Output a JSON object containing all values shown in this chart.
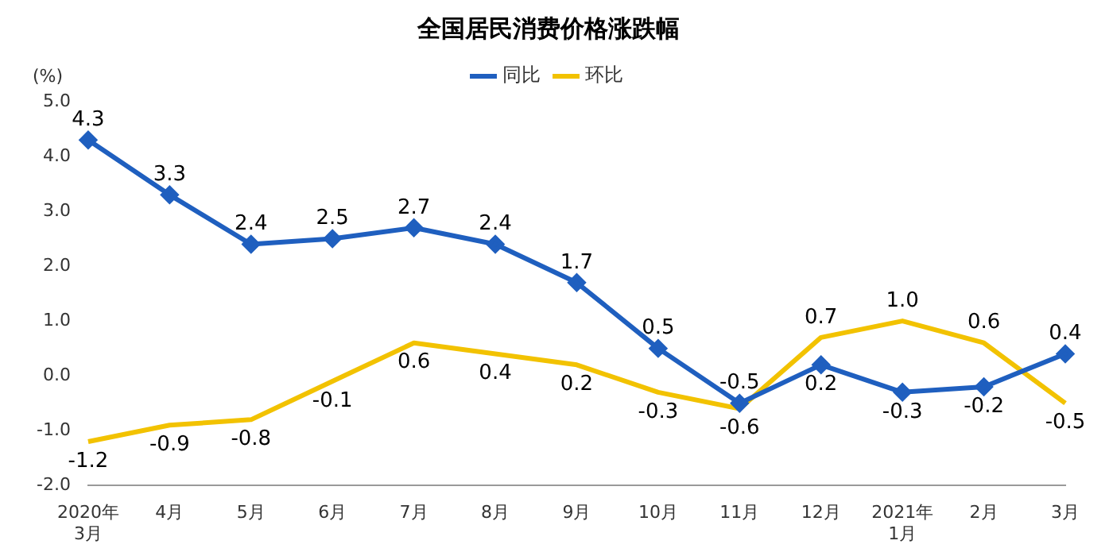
{
  "chart_data": {
    "type": "line",
    "title": "全国居民消费价格涨跌幅",
    "ylabel": "(%)",
    "categories": [
      "2020年\n3月",
      "4月",
      "5月",
      "6月",
      "7月",
      "8月",
      "9月",
      "10月",
      "11月",
      "12月",
      "2021年\n1月",
      "2月",
      "3月"
    ],
    "series": [
      {
        "name": "同比",
        "color": "#1f5fbf",
        "marker": "diamond",
        "values": [
          4.3,
          3.3,
          2.4,
          2.5,
          2.7,
          2.4,
          1.7,
          0.5,
          -0.5,
          0.2,
          -0.3,
          -0.2,
          0.4
        ],
        "value_labels": [
          "4.3",
          "3.3",
          "2.4",
          "2.5",
          "2.7",
          "2.4",
          "1.7",
          "0.5",
          "-0.5",
          "0.2",
          "-0.3",
          "-0.2",
          "0.4"
        ]
      },
      {
        "name": "环比",
        "color": "#f2c200",
        "marker": "none",
        "values": [
          -1.2,
          -0.9,
          -0.8,
          -0.1,
          0.6,
          0.4,
          0.2,
          -0.3,
          -0.6,
          0.7,
          1.0,
          0.6,
          -0.5
        ],
        "value_labels": [
          "-1.2",
          "-0.9",
          "-0.8",
          "-0.1",
          "0.6",
          "0.4",
          "0.2",
          "-0.3",
          "-0.6",
          "0.7",
          "1.0",
          "0.6",
          "-0.5"
        ]
      }
    ],
    "ylim": [
      -2,
      5
    ],
    "yticks": [
      {
        "value": -2,
        "label": "-2.0"
      },
      {
        "value": -1,
        "label": "-1.0"
      },
      {
        "value": 0,
        "label": "0.0"
      },
      {
        "value": 1,
        "label": "1.0"
      },
      {
        "value": 2,
        "label": "2.0"
      },
      {
        "value": 3,
        "label": "3.0"
      },
      {
        "value": 4,
        "label": "4.0"
      },
      {
        "value": 5,
        "label": "5.0"
      }
    ],
    "grid": false,
    "legend": "top"
  }
}
